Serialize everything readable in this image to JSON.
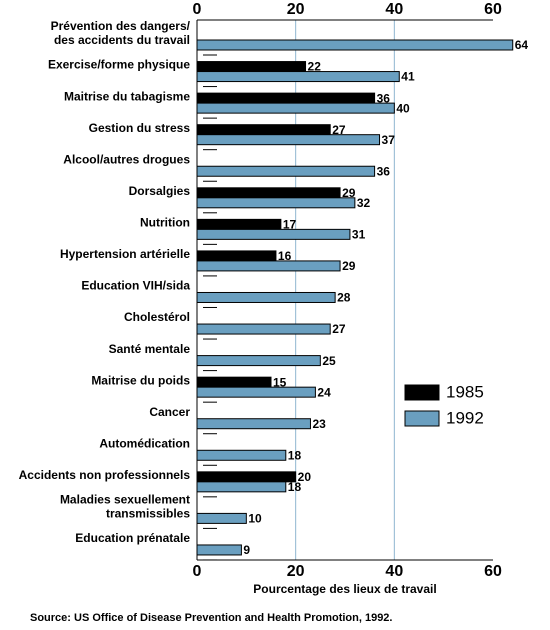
{
  "chart_data": {
    "type": "bar",
    "orientation": "horizontal",
    "categories": [
      "Prévention des dangers/\ndes accidents du travail",
      "Exercise/forme physique",
      "Maitrise du tabagisme",
      "Gestion du stress",
      "Alcool/autres drogues",
      "Dorsalgies",
      "Nutrition",
      "Hypertension artérielle",
      "Education VIH/sida",
      "Cholestérol",
      "Santé mentale",
      "Maitrise du poids",
      "Cancer",
      "Automédication",
      "Accidents non professionnels",
      "Maladies sexuellement\ntransmissibles",
      "Education prénatale"
    ],
    "series": [
      {
        "name": "1985",
        "color": "#000000",
        "values": [
          null,
          22,
          36,
          27,
          null,
          29,
          17,
          16,
          null,
          null,
          null,
          15,
          null,
          null,
          20,
          null,
          null
        ]
      },
      {
        "name": "1992",
        "color": "#6a9fc0",
        "values": [
          64,
          41,
          40,
          37,
          36,
          32,
          31,
          29,
          28,
          27,
          25,
          24,
          23,
          18,
          18,
          10,
          9
        ]
      }
    ],
    "xlim": [
      0,
      60
    ],
    "xticks": [
      0,
      20,
      40,
      60
    ],
    "grid": true,
    "xlabel": "Pourcentage des lieux de travail",
    "source": "Source: US Office of Disease Prevention and Health Promotion, 1992.",
    "legend": "lower right"
  }
}
